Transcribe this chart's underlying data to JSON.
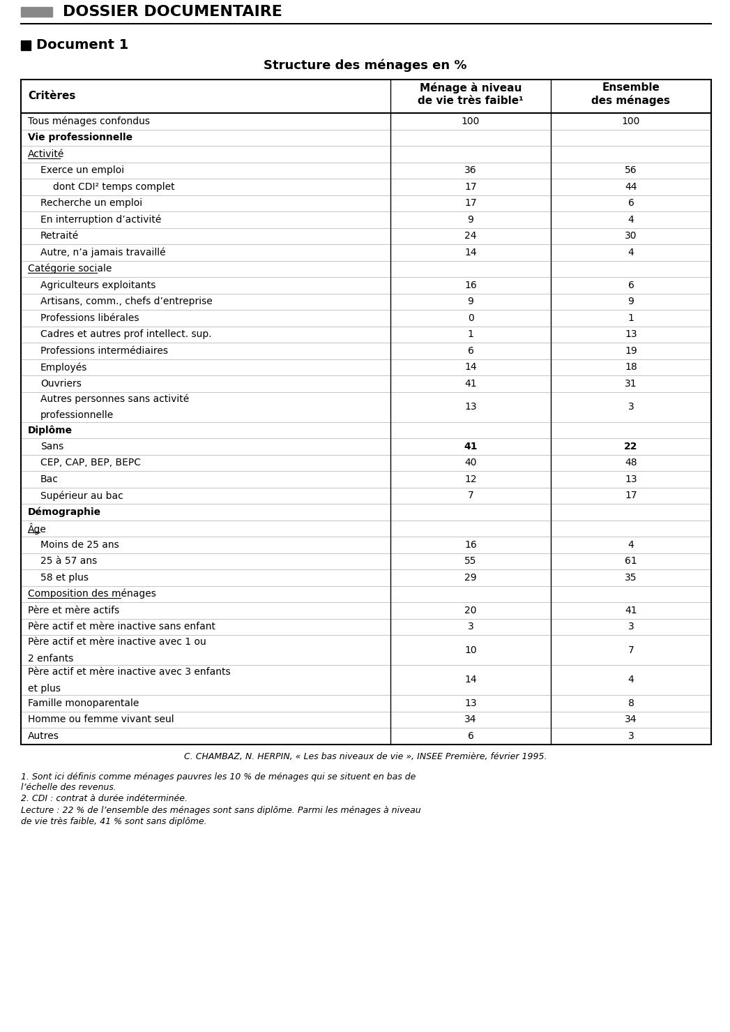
{
  "header_title": "DOSSIER DOCUMENTAIRE",
  "doc_label": "Document 1",
  "table_title": "Structure des ménages en %",
  "col1_header": "Critères",
  "col2_header": "Ménage à niveau\nde vie très faible¹",
  "col3_header": "Ensemble\ndes ménages",
  "rows": [
    {
      "label": "Tous ménages confondus",
      "indent": 0,
      "style": "normal",
      "v1": "100",
      "v2": "100"
    },
    {
      "label": "Vie professionnelle",
      "indent": 0,
      "style": "bold",
      "v1": "",
      "v2": ""
    },
    {
      "label": "Activité",
      "indent": 0,
      "style": "underline",
      "v1": "",
      "v2": ""
    },
    {
      "label": "Exerce un emploi",
      "indent": 1,
      "style": "normal",
      "v1": "36",
      "v2": "56"
    },
    {
      "label": "dont CDI² temps complet",
      "indent": 2,
      "style": "normal",
      "v1": "17",
      "v2": "44"
    },
    {
      "label": "Recherche un emploi",
      "indent": 1,
      "style": "normal",
      "v1": "17",
      "v2": "6"
    },
    {
      "label": "En interruption d’activité",
      "indent": 1,
      "style": "normal",
      "v1": "9",
      "v2": "4"
    },
    {
      "label": "Retraité",
      "indent": 1,
      "style": "normal",
      "v1": "24",
      "v2": "30"
    },
    {
      "label": "Autre, n’a jamais travaillé",
      "indent": 1,
      "style": "normal",
      "v1": "14",
      "v2": "4"
    },
    {
      "label": "Catégorie sociale",
      "indent": 0,
      "style": "underline",
      "v1": "",
      "v2": ""
    },
    {
      "label": "Agriculteurs exploitants",
      "indent": 1,
      "style": "normal",
      "v1": "16",
      "v2": "6"
    },
    {
      "label": "Artisans, comm., chefs d’entreprise",
      "indent": 1,
      "style": "normal",
      "v1": "9",
      "v2": "9"
    },
    {
      "label": "Professions libérales",
      "indent": 1,
      "style": "normal",
      "v1": "0",
      "v2": "1"
    },
    {
      "label": "Cadres et autres prof intellect. sup.",
      "indent": 1,
      "style": "normal",
      "v1": "1",
      "v2": "13"
    },
    {
      "label": "Professions intermédiaires",
      "indent": 1,
      "style": "normal",
      "v1": "6",
      "v2": "19"
    },
    {
      "label": "Employés",
      "indent": 1,
      "style": "normal",
      "v1": "14",
      "v2": "18"
    },
    {
      "label": "Ouvriers",
      "indent": 1,
      "style": "normal",
      "v1": "41",
      "v2": "31"
    },
    {
      "label": "Autres personnes sans activité\nprofessionnelle",
      "indent": 1,
      "style": "normal",
      "v1": "13",
      "v2": "3"
    },
    {
      "label": "Diplôme",
      "indent": 0,
      "style": "bold",
      "v1": "",
      "v2": ""
    },
    {
      "label": "Sans",
      "indent": 1,
      "style": "bold_values",
      "v1": "41",
      "v2": "22"
    },
    {
      "label": "CEP, CAP, BEP, BEPC",
      "indent": 1,
      "style": "normal",
      "v1": "40",
      "v2": "48"
    },
    {
      "label": "Bac",
      "indent": 1,
      "style": "normal",
      "v1": "12",
      "v2": "13"
    },
    {
      "label": "Supérieur au bac",
      "indent": 1,
      "style": "normal",
      "v1": "7",
      "v2": "17"
    },
    {
      "label": "Démographie",
      "indent": 0,
      "style": "bold",
      "v1": "",
      "v2": ""
    },
    {
      "label": "Âge",
      "indent": 0,
      "style": "underline",
      "v1": "",
      "v2": ""
    },
    {
      "label": "Moins de 25 ans",
      "indent": 1,
      "style": "normal",
      "v1": "16",
      "v2": "4"
    },
    {
      "label": "25 à 57 ans",
      "indent": 1,
      "style": "normal",
      "v1": "55",
      "v2": "61"
    },
    {
      "label": "58 et plus",
      "indent": 1,
      "style": "normal",
      "v1": "29",
      "v2": "35"
    },
    {
      "label": "Composition des ménages",
      "indent": 0,
      "style": "underline",
      "v1": "",
      "v2": ""
    },
    {
      "label": "Père et mère actifs",
      "indent": 0,
      "style": "normal",
      "v1": "20",
      "v2": "41"
    },
    {
      "label": "Père actif et mère inactive sans enfant",
      "indent": 0,
      "style": "normal",
      "v1": "3",
      "v2": "3"
    },
    {
      "label": "Père actif et mère inactive avec 1 ou\n2 enfants",
      "indent": 0,
      "style": "normal",
      "v1": "10",
      "v2": "7"
    },
    {
      "label": "Père actif et mère inactive avec 3 enfants\net plus",
      "indent": 0,
      "style": "normal",
      "v1": "14",
      "v2": "4"
    },
    {
      "label": "Famille monoparentale",
      "indent": 0,
      "style": "normal",
      "v1": "13",
      "v2": "8"
    },
    {
      "label": "Homme ou femme vivant seul",
      "indent": 0,
      "style": "normal",
      "v1": "34",
      "v2": "34"
    },
    {
      "label": "Autres",
      "indent": 0,
      "style": "normal",
      "v1": "6",
      "v2": "3"
    }
  ],
  "source": "C. CHAMBAZ, N. HERPIN, « Les bas niveaux de vie », INSEE Première, février 1995.",
  "footnotes": [
    "1. Sont ici définis comme ménages pauvres les 10 % de ménages qui se situent en bas de",
    "l’échelle des revenus.",
    "2. CDI : contrat à durée indéterminée.",
    "Lecture : 22 % de l’ensemble des ménages sont sans diplôme. Parmi les ménages à niveau",
    "de vie très faible, 41 % sont sans diplôme."
  ],
  "bg_color": "#ffffff",
  "text_color": "#000000",
  "border_color": "#000000"
}
